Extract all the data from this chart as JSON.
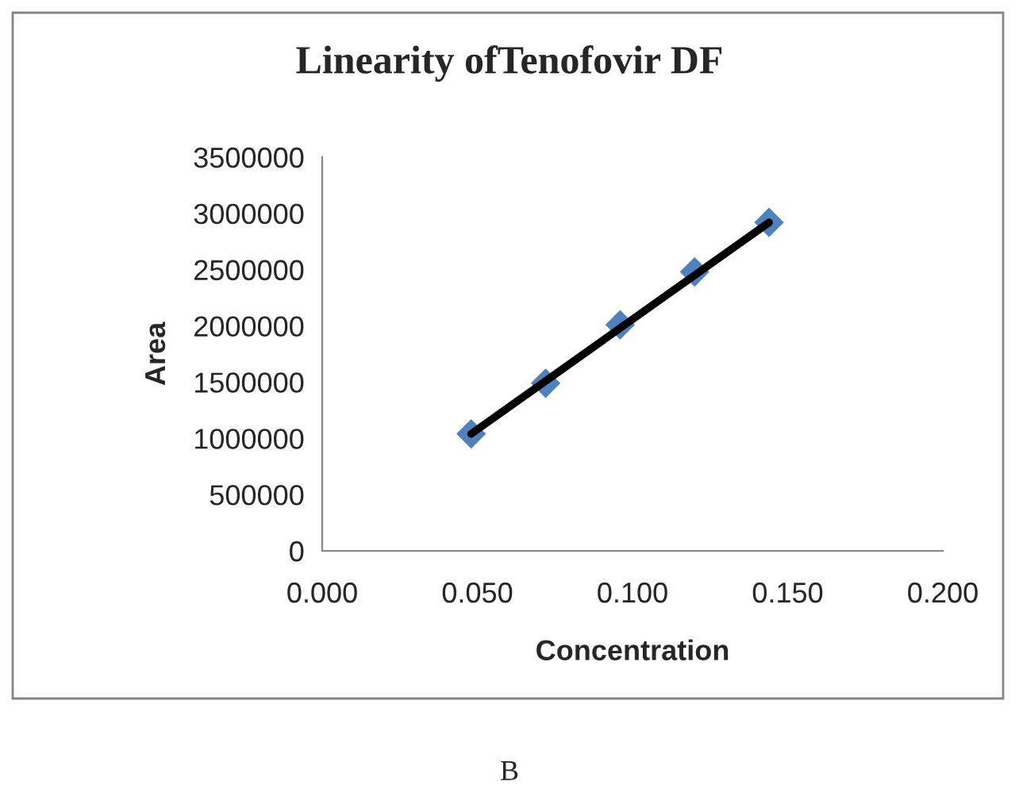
{
  "chart_data": {
    "type": "scatter",
    "title": "Linearity ofTenofovir DF",
    "xlabel": "Concentration",
    "ylabel": "Area",
    "series": [
      {
        "color": "#4f81bd",
        "marker": "diamond",
        "x": [
          0.048,
          0.072,
          0.096,
          0.12,
          0.144
        ],
        "values": [
          1040000,
          1490000,
          2010000,
          2480000,
          2920000
        ]
      },
      {
        "type": "line",
        "color": "#000000",
        "marker": "none",
        "line_style": "solid",
        "x": [
          0.048,
          0.144
        ],
        "values": [
          1040000,
          2920000
        ]
      }
    ],
    "xlim": [
      0.0,
      0.2
    ],
    "xticks": [
      {
        "value": 0.0,
        "label": "0.000"
      },
      {
        "value": 0.05,
        "label": "0.050"
      },
      {
        "value": 0.1,
        "label": "0.100"
      },
      {
        "value": 0.15,
        "label": "0.150"
      },
      {
        "value": 0.2,
        "label": "0.200"
      }
    ],
    "ylim": [
      0,
      3500000
    ],
    "yticks": [
      0,
      500000,
      1000000,
      1500000,
      2000000,
      2500000,
      3000000,
      3500000
    ],
    "grid": false,
    "legend": false,
    "annotations": [
      "B"
    ]
  }
}
